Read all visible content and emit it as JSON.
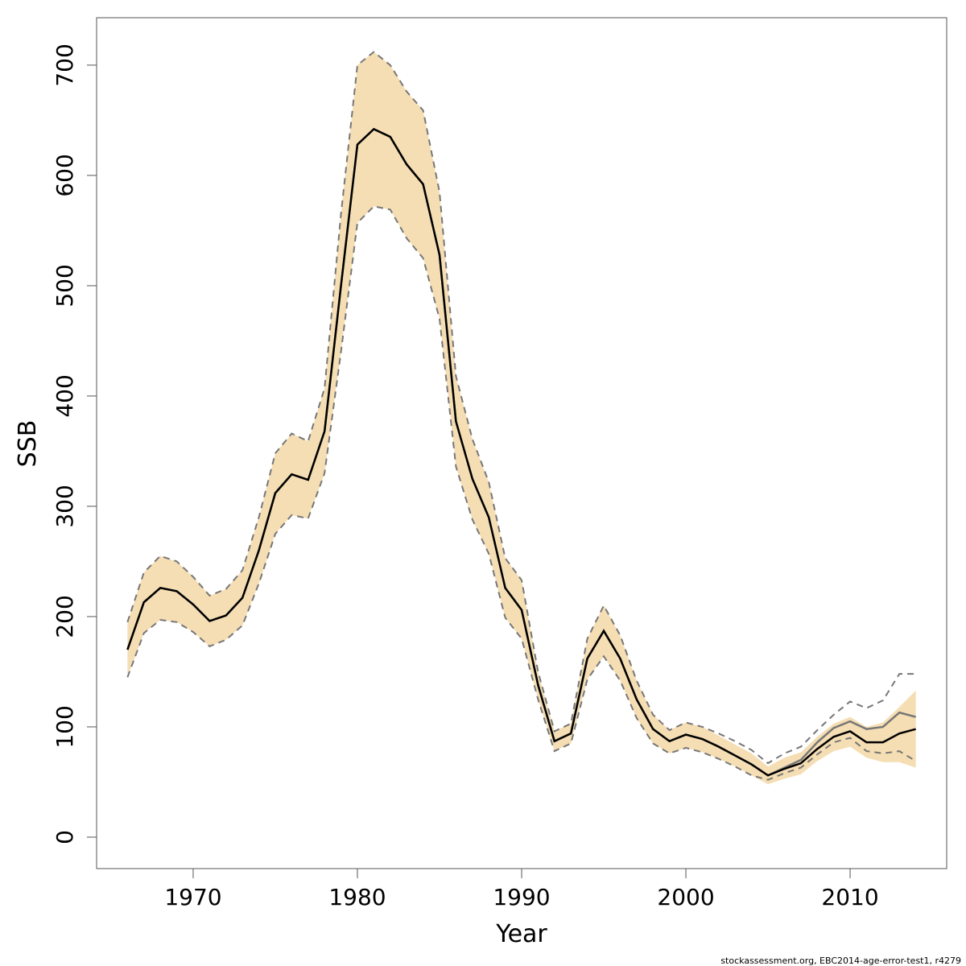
{
  "chart_data": {
    "type": "line",
    "xlabel": "Year",
    "ylabel": "SSB",
    "footer": "stockassessment.org, EBC2014-age-error-test1, r4279",
    "x": [
      1966,
      1967,
      1968,
      1969,
      1970,
      1971,
      1972,
      1973,
      1974,
      1975,
      1976,
      1977,
      1978,
      1979,
      1980,
      1981,
      1982,
      1983,
      1984,
      1985,
      1986,
      1987,
      1988,
      1989,
      1990,
      1991,
      1992,
      1993,
      1994,
      1995,
      1996,
      1997,
      1998,
      1999,
      2000,
      2001,
      2002,
      2003,
      2004,
      2005,
      2006,
      2007,
      2008,
      2009,
      2010,
      2011,
      2012,
      2013,
      2014
    ],
    "bands": [
      {
        "color": "#f5deb3",
        "lower": [
          145,
          185,
          197,
          195,
          186,
          173,
          179,
          192,
          230,
          275,
          292,
          289,
          330,
          440,
          557,
          572,
          569,
          543,
          525,
          470,
          336,
          288,
          257,
          199,
          180,
          125,
          78,
          85,
          143,
          164,
          142,
          108,
          85,
          76,
          81,
          77,
          71,
          64,
          56,
          48,
          53,
          57,
          69,
          78,
          82,
          72,
          68,
          68,
          63
        ],
        "upper": [
          195,
          240,
          255,
          250,
          236,
          219,
          225,
          242,
          290,
          348,
          366,
          359,
          407,
          565,
          700,
          712,
          700,
          676,
          659,
          585,
          418,
          361,
          322,
          253,
          233,
          150,
          96,
          103,
          180,
          210,
          183,
          142,
          111,
          97,
          104,
          100,
          92,
          84,
          76,
          64,
          72,
          77,
          91,
          103,
          109,
          100,
          104,
          118,
          133
        ]
      }
    ],
    "series": [
      {
        "color": "#777777",
        "dashed": true,
        "values": [
          195,
          240,
          255,
          250,
          236,
          219,
          225,
          242,
          290,
          348,
          366,
          359,
          407,
          565,
          700,
          712,
          700,
          676,
          659,
          585,
          418,
          361,
          322,
          253,
          233,
          150,
          96,
          103,
          180,
          210,
          183,
          142,
          111,
          97,
          104,
          100,
          94,
          87,
          79,
          67,
          76,
          82,
          97,
          111,
          123,
          117,
          124,
          148,
          148
        ]
      },
      {
        "color": "#777777",
        "dashed": true,
        "values": [
          145,
          185,
          197,
          195,
          186,
          173,
          179,
          192,
          230,
          275,
          292,
          289,
          330,
          440,
          557,
          572,
          569,
          543,
          525,
          470,
          336,
          288,
          257,
          199,
          180,
          125,
          78,
          85,
          143,
          164,
          142,
          108,
          85,
          76,
          81,
          77,
          71,
          64,
          56,
          52,
          58,
          63,
          75,
          86,
          90,
          78,
          76,
          78,
          69
        ]
      },
      {
        "color": "#777777",
        "dashed": false,
        "values": [
          170,
          213,
          226,
          223,
          211,
          196,
          201,
          217,
          260,
          312,
          329,
          324,
          368,
          500,
          628,
          642,
          635,
          610,
          592,
          528,
          377,
          325,
          290,
          226,
          206,
          138,
          87,
          94,
          162,
          187,
          162,
          125,
          98,
          87,
          93,
          89,
          82,
          74,
          66,
          56,
          63,
          70,
          86,
          99,
          105,
          98,
          100,
          113,
          109
        ]
      },
      {
        "color": "#000000",
        "dashed": false,
        "values": [
          170,
          213,
          226,
          223,
          211,
          196,
          201,
          217,
          260,
          312,
          329,
          324,
          368,
          500,
          628,
          642,
          635,
          610,
          592,
          528,
          377,
          325,
          290,
          226,
          206,
          138,
          87,
          94,
          162,
          187,
          162,
          125,
          98,
          87,
          93,
          89,
          82,
          74,
          66,
          56,
          62,
          67,
          80,
          91,
          96,
          86,
          86,
          94,
          98
        ]
      }
    ],
    "xlim": [
      1964.12,
      2015.88
    ],
    "ylim": [
      -28.5,
      743
    ],
    "xticks": [
      1970,
      1980,
      1990,
      2000,
      2010
    ],
    "yticks": [
      0,
      100,
      200,
      300,
      400,
      500,
      600,
      700
    ]
  }
}
